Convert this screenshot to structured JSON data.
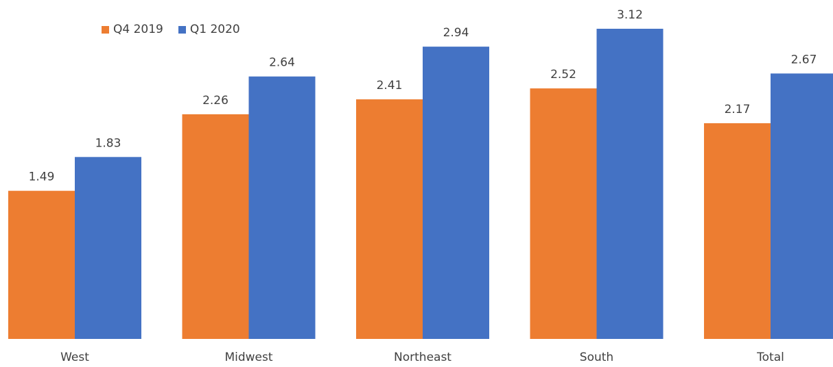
{
  "chart_data": {
    "type": "bar",
    "categories": [
      "West",
      "Midwest",
      "Northeast",
      "South",
      "Total"
    ],
    "series": [
      {
        "name": "Q4 2019",
        "color": "#ED7D31",
        "values": [
          1.49,
          2.26,
          2.41,
          2.52,
          2.17
        ],
        "labels": [
          "1.49",
          "2.26",
          "2.41",
          "2.52",
          "2.17"
        ]
      },
      {
        "name": "Q1 2020",
        "color": "#4472C4",
        "values": [
          1.83,
          2.64,
          2.94,
          3.12,
          2.67
        ],
        "labels": [
          "1.83",
          "2.64",
          "2.94",
          "3.12",
          "2.67"
        ]
      }
    ],
    "title": "",
    "xlabel": "",
    "ylabel": "",
    "ylim": [
      0,
      3.12
    ],
    "grid": false,
    "legend": "top-left",
    "data_labels": true,
    "axis_line": false
  }
}
